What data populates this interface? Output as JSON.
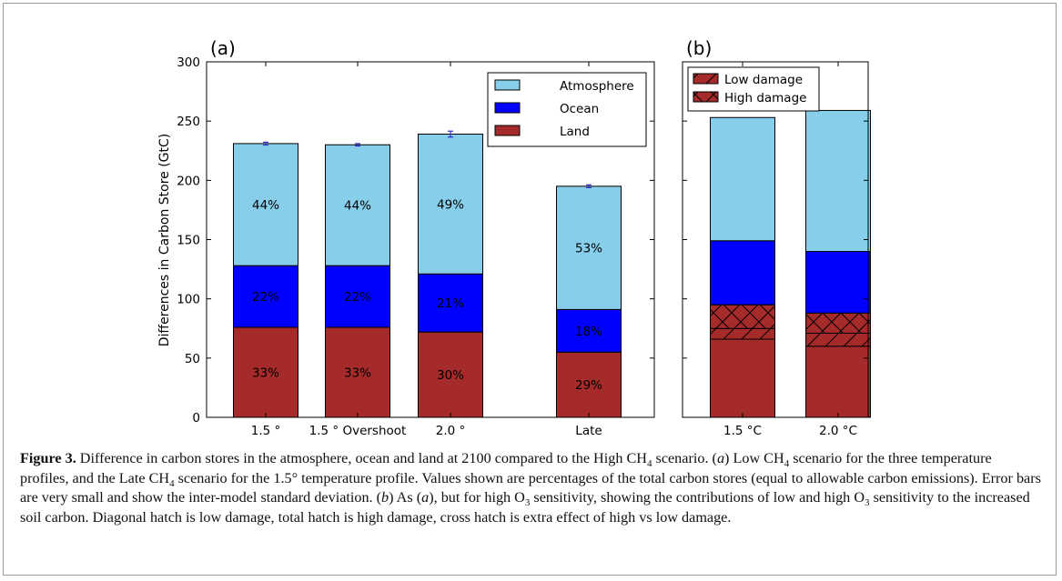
{
  "chart_data": [
    {
      "panel_label": "(a)",
      "type": "bar",
      "stacked": true,
      "ylabel": "Differences in Carbon Store (GtC)",
      "xlabel": "",
      "ylim": [
        0,
        300
      ],
      "yticks": [
        0,
        50,
        100,
        150,
        200,
        250,
        300
      ],
      "categories": [
        "1.5$^\\circ$",
        "1.5$^\\circ$ Overshoot",
        "2.0$^\\circ$",
        "Late"
      ],
      "category_labels": [
        "1.5 °",
        "1.5 ° Overshoot",
        "2.0 °",
        "Late"
      ],
      "series": [
        {
          "name": "Land",
          "color": "#a52a2a",
          "values": [
            76,
            76,
            72,
            55
          ],
          "labels": [
            "33%",
            "33%",
            "30%",
            "29%"
          ]
        },
        {
          "name": "Ocean",
          "color": "#0000ff",
          "values": [
            52,
            52,
            49,
            36
          ],
          "labels": [
            "22%",
            "22%",
            "21%",
            "18%"
          ]
        },
        {
          "name": "Atmosphere",
          "color": "#87ceeb",
          "values": [
            103,
            102,
            118,
            104
          ],
          "labels": [
            "44%",
            "44%",
            "49%",
            "53%"
          ]
        }
      ],
      "totals": [
        231,
        230,
        239,
        195
      ],
      "error_bars": [
        1.2,
        1.0,
        2.5,
        1.2
      ],
      "legend": {
        "position": "top-right",
        "order": [
          "Atmosphere",
          "Ocean",
          "Land"
        ]
      }
    },
    {
      "panel_label": "(b)",
      "type": "bar",
      "stacked": true,
      "ylim": [
        0,
        300
      ],
      "categories": [
        "1.5 °C",
        "2.0 °C"
      ],
      "series": [
        {
          "name": "Land",
          "color": "#a52a2a",
          "values": [
            66,
            60
          ]
        },
        {
          "name": "Low damage",
          "color": "#a52a2a",
          "hatch": "diagonal",
          "values": [
            9,
            11
          ]
        },
        {
          "name": "High damage",
          "color": "#a52a2a",
          "hatch": "cross",
          "values": [
            20,
            17
          ]
        },
        {
          "name": "Ocean",
          "color": "#0000ff",
          "values": [
            54,
            52
          ]
        },
        {
          "name": "Atmosphere",
          "color": "#87ceeb",
          "values": [
            104,
            119
          ]
        }
      ],
      "totals": [
        253,
        259
      ],
      "legend": {
        "position": "top-left",
        "order": [
          "Low damage",
          "High damage"
        ]
      }
    }
  ],
  "caption": {
    "figure_label": "Figure 3.",
    "text_1": " Difference in carbon stores in the atmosphere, ocean and land at 2100 compared to the High CH",
    "sub_1": "4",
    "text_2": " scenario. (",
    "ital_1": "a",
    "text_3": ") Low CH",
    "sub_2": "4",
    "text_4": " scenario for the three temperature profiles, and the Late CH",
    "sub_3": "4",
    "text_5": " scenario for the 1.5° temperature profile. Values shown are percentages of the total carbon stores (equal to allowable carbon emissions). Error bars are very small and show the inter-model standard deviation. (",
    "ital_2": "b",
    "text_6": ") As (",
    "ital_3": "a",
    "text_7": "), but for high O",
    "sub_4": "3",
    "text_8": " sensitivity, showing the contributions of low and high O",
    "sub_5": "3",
    "text_9": " sensitivity to the increased soil carbon. Diagonal hatch is low damage, total hatch is high damage, cross hatch is extra effect of high vs low damage."
  }
}
